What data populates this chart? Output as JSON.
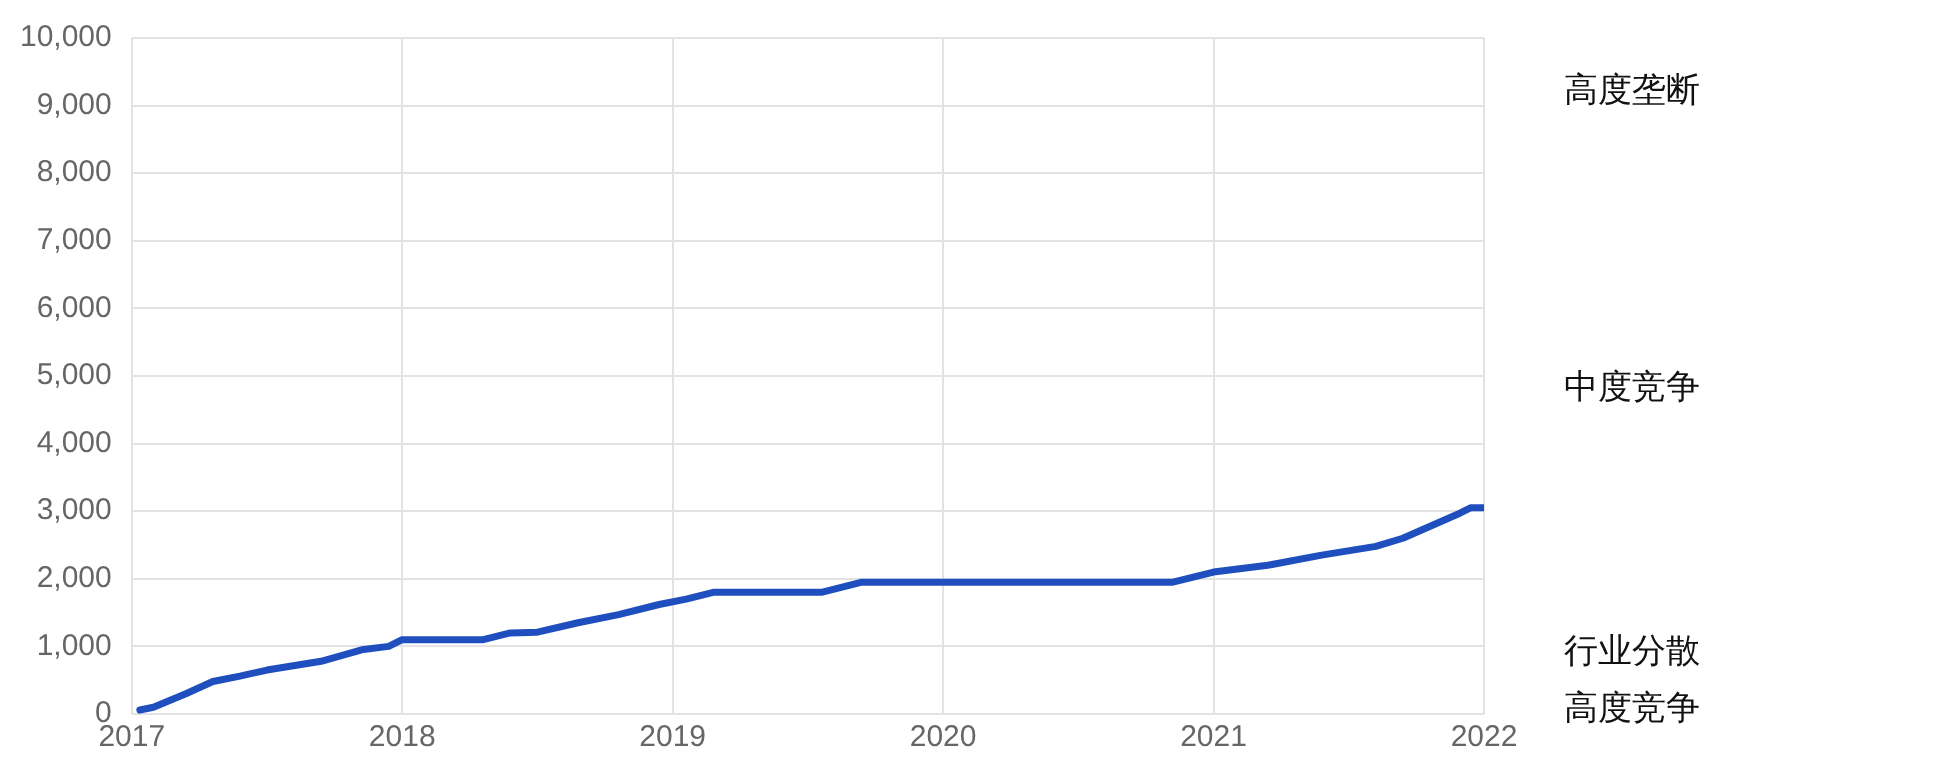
{
  "chart_data": {
    "type": "line",
    "x": [
      2017.03,
      2017.08,
      2017.2,
      2017.3,
      2017.4,
      2017.5,
      2017.7,
      2017.85,
      2017.95,
      2018.0,
      2018.3,
      2018.4,
      2018.5,
      2018.65,
      2018.8,
      2018.95,
      2019.05,
      2019.15,
      2019.55,
      2019.7,
      2020.0,
      2020.85,
      2021.0,
      2021.2,
      2021.4,
      2021.6,
      2021.7,
      2021.9,
      2021.95,
      2022.0
    ],
    "series": [
      {
        "color": "#1f4fbf",
        "values": [
          60,
          100,
          300,
          480,
          560,
          650,
          780,
          950,
          1000,
          1100,
          1100,
          1200,
          1210,
          1350,
          1470,
          1620,
          1700,
          1800,
          1800,
          1950,
          1950,
          1950,
          2100,
          2200,
          2350,
          2480,
          2600,
          2950,
          3050,
          3050
        ]
      }
    ],
    "xlim": [
      2017,
      2022
    ],
    "xticks": [
      2017,
      2018,
      2019,
      2020,
      2021,
      2022
    ],
    "ylim": [
      0,
      10000
    ],
    "yticks": [
      0,
      {
        "value": 1000,
        "label": "1,000"
      },
      {
        "value": 2000,
        "label": "2,000"
      },
      {
        "value": 3000,
        "label": "3,000"
      },
      {
        "value": 4000,
        "label": "4,000"
      },
      {
        "value": 5000,
        "label": "5,000"
      },
      {
        "value": 6000,
        "label": "6,000"
      },
      {
        "value": 7000,
        "label": "7,000"
      },
      {
        "value": 8000,
        "label": "8,000"
      },
      {
        "value": 9000,
        "label": "9,000"
      },
      {
        "value": 10000,
        "label": "10,000"
      }
    ],
    "annotations": [
      "高度垄断",
      "中度竞争",
      "行业分散",
      "高度竞争"
    ],
    "grid": true,
    "legend": false,
    "marker": "none",
    "line_style": "solid"
  }
}
